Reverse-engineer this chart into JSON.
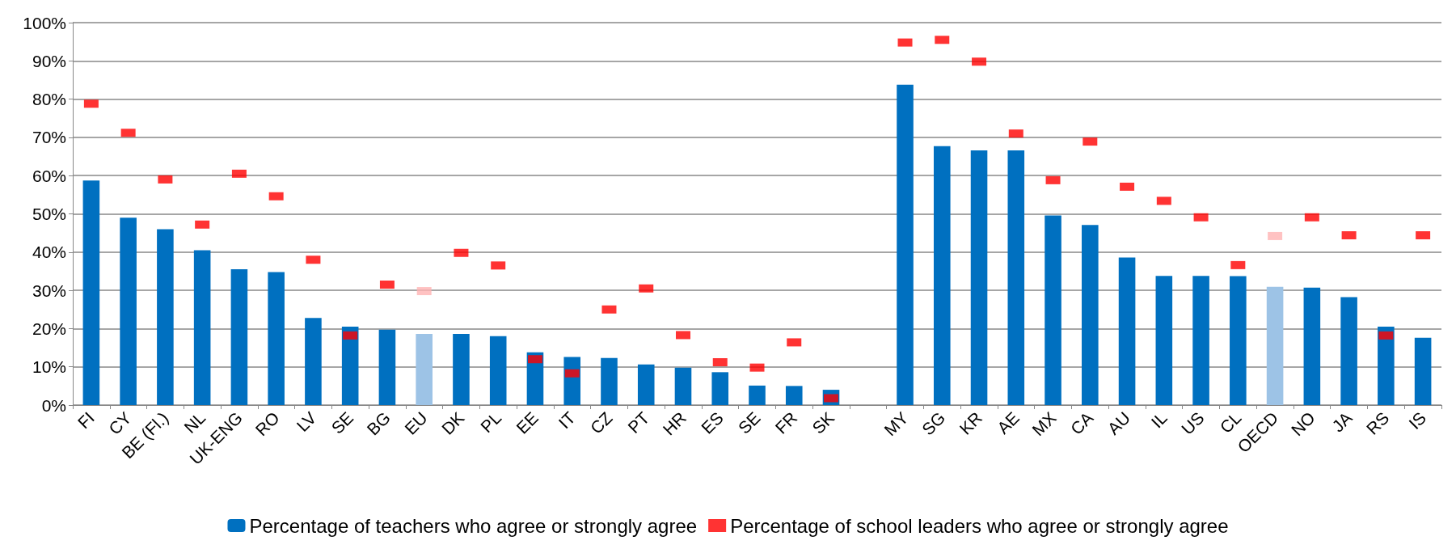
{
  "chart_data": {
    "type": "bar",
    "categories": [
      "FI",
      "CY",
      "BE (Fl.)",
      "NL",
      "UK-ENG",
      "RO",
      "LV",
      "SE",
      "BG",
      "EU",
      "DK",
      "PL",
      "EE",
      "IT",
      "CZ",
      "PT",
      "HR",
      "ES",
      "SE",
      "FR",
      "SK",
      null,
      "MY",
      "SG",
      "KR",
      "AE",
      "MX",
      "CA",
      "AU",
      "IL",
      "US",
      "CL",
      "OECD",
      "NO",
      "JA",
      "RS",
      "IS"
    ],
    "series": [
      {
        "name": "Percentage of teachers who agree or strongly agree",
        "color": "#0070c0",
        "colors": [
          "#0070c0",
          "#0070c0",
          "#0070c0",
          "#0070c0",
          "#0070c0",
          "#0070c0",
          "#0070c0",
          "#0070c0",
          "#0070c0",
          "#9dc3e6",
          "#0070c0",
          "#0070c0",
          "#0070c0",
          "#0070c0",
          "#0070c0",
          "#0070c0",
          "#0070c0",
          "#0070c0",
          "#0070c0",
          "#0070c0",
          "#0070c0",
          null,
          "#0070c0",
          "#0070c0",
          "#0070c0",
          "#0070c0",
          "#0070c0",
          "#0070c0",
          "#0070c0",
          "#0070c0",
          "#0070c0",
          "#0070c0",
          "#9dc3e6",
          "#0070c0",
          "#0070c0",
          "#0070c0",
          "#0070c0"
        ],
        "values": [
          58.7,
          49,
          46,
          40.5,
          35.5,
          34.8,
          22.8,
          20.5,
          19.7,
          18.6,
          18.6,
          18,
          13.8,
          12.6,
          12.3,
          10.6,
          9.8,
          8.6,
          5.1,
          5,
          4,
          null,
          83.8,
          67.7,
          66.6,
          66.6,
          49.6,
          47.1,
          38.6,
          33.8,
          33.8,
          33.7,
          30.9,
          30.7,
          28.2,
          20.5,
          17.6
        ]
      },
      {
        "name": "Percentage of school leaders who agree or strongly agree",
        "type": "scatter",
        "marker": "square",
        "color": "#ff0000",
        "colors": [
          "#ff0000",
          "#ff0000",
          "#ff0000",
          "#ff0000",
          "#ff0000",
          "#ff0000",
          "#ff0000",
          "#ff0000",
          "#ff0000",
          "#ffb3b3",
          "#ff0000",
          "#ff0000",
          "#ff0000",
          "#ff0000",
          "#ff0000",
          "#ff0000",
          "#ff0000",
          "#ff0000",
          "#ff0000",
          "#ff0000",
          "#ff0000",
          null,
          "#ff0000",
          "#ff0000",
          "#ff0000",
          "#ff0000",
          "#ff0000",
          "#ff0000",
          "#ff0000",
          "#ff0000",
          "#ff0000",
          "#ff0000",
          "#ffb3b3",
          "#ff0000",
          "#ff0000",
          "#ff0000",
          "#ff0000"
        ],
        "values": [
          78.8,
          71.2,
          59,
          47.2,
          60.5,
          54.6,
          38,
          18.2,
          31.5,
          29.8,
          39.8,
          36.5,
          12,
          8.3,
          25,
          30.5,
          18.3,
          11.2,
          9.8,
          16.4,
          1.8,
          null,
          94.8,
          95.5,
          89.8,
          71,
          58.8,
          68.9,
          57.1,
          53.4,
          49.1,
          36.6,
          44.2,
          49.1,
          44.4,
          18.2,
          44.4
        ]
      }
    ],
    "ylim": [
      0,
      100
    ],
    "yticks": [
      {
        "value": 0,
        "label": "0%"
      },
      {
        "value": 10,
        "label": "10%"
      },
      {
        "value": 20,
        "label": "20%"
      },
      {
        "value": 30,
        "label": "30%"
      },
      {
        "value": 40,
        "label": "40%"
      },
      {
        "value": 50,
        "label": "50%"
      },
      {
        "value": 60,
        "label": "60%"
      },
      {
        "value": 70,
        "label": "70%"
      },
      {
        "value": 80,
        "label": "80%"
      },
      {
        "value": 90,
        "label": "90%"
      },
      {
        "value": 100,
        "label": "100%"
      }
    ],
    "grid": "y",
    "legend": "bottom"
  }
}
